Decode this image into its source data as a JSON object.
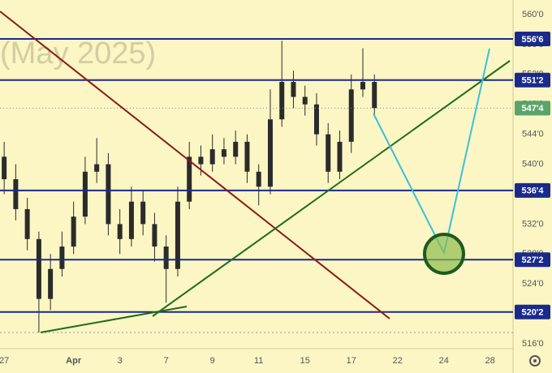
{
  "chart_data": {
    "type": "candlestick",
    "watermark": "(May 2025)",
    "color": "#2b2b2b",
    "x": [
      0,
      0.5,
      1,
      1.5,
      2,
      2.5,
      3,
      3.5,
      4,
      4.5,
      5,
      5.5,
      6,
      6.5,
      7,
      7.5,
      8,
      8.5,
      9,
      9.5,
      10,
      10.5,
      11,
      11.5,
      12,
      12.5,
      13,
      13.5,
      14,
      14.5,
      15,
      15.5,
      16
    ],
    "open": [
      541,
      538,
      534,
      530,
      522,
      526,
      529,
      533,
      539,
      540,
      532,
      530,
      535,
      532,
      529,
      526,
      535,
      541,
      540,
      542,
      541,
      543,
      539,
      537,
      546,
      551,
      549,
      548,
      544,
      539,
      543,
      550,
      551
    ],
    "high": [
      543,
      540,
      535.5,
      531,
      528,
      531,
      535,
      541,
      543.5,
      541.5,
      534,
      537,
      536.5,
      533.5,
      530.5,
      537,
      543,
      542.5,
      544,
      543.5,
      544.5,
      544,
      540,
      550,
      556.5,
      552.5,
      550.5,
      549.5,
      545.5,
      544.5,
      552,
      555.5,
      552
    ],
    "low": [
      536,
      532.5,
      528.5,
      517.5,
      520.5,
      525,
      528,
      532,
      537.5,
      530.5,
      528,
      529,
      530.5,
      527,
      521.5,
      525,
      534,
      538.5,
      539,
      540,
      540,
      537.5,
      534.5,
      536,
      545,
      547.5,
      546.5,
      542.5,
      537.5,
      538,
      541.5,
      549,
      546.5
    ],
    "close": [
      538,
      534,
      530,
      522,
      526,
      529,
      533,
      539,
      540,
      532,
      530,
      535,
      532,
      529,
      526,
      535,
      541,
      540,
      542,
      541,
      543,
      539,
      537,
      546,
      551,
      549,
      548,
      544,
      539,
      543,
      550,
      551,
      547.5
    ],
    "xlim": [
      -0.18,
      21.99
    ],
    "ylim": [
      515.35,
      561.95
    ],
    "xticks": [
      {
        "value": 0,
        "label": "27"
      },
      {
        "value": 3,
        "label": "Apr"
      },
      {
        "value": 5,
        "label": "3"
      },
      {
        "value": 7,
        "label": "7"
      },
      {
        "value": 9,
        "label": "9"
      },
      {
        "value": 11,
        "label": "11"
      },
      {
        "value": 13,
        "label": "15"
      },
      {
        "value": 15,
        "label": "17"
      },
      {
        "value": 17,
        "label": "22"
      },
      {
        "value": 19,
        "label": "24"
      },
      {
        "value": 21,
        "label": "28"
      }
    ],
    "yticks": [
      {
        "value": 516,
        "label": "516'0"
      },
      {
        "value": 520,
        "label": "520'0"
      },
      {
        "value": 524,
        "label": "524'0"
      },
      {
        "value": 528,
        "label": "528'0"
      },
      {
        "value": 532,
        "label": "532'0"
      },
      {
        "value": 536,
        "label": "536'0"
      },
      {
        "value": 540,
        "label": "540'0"
      },
      {
        "value": 544,
        "label": "544'0"
      },
      {
        "value": 548,
        "label": "548'0"
      },
      {
        "value": 552,
        "label": "552'0"
      },
      {
        "value": 556,
        "label": "556'0"
      },
      {
        "value": 560,
        "label": "560'0"
      }
    ],
    "levels": [
      {
        "value": 556.75,
        "label": "556'6"
      },
      {
        "value": 551.25,
        "label": "551'2"
      },
      {
        "value": 536.5,
        "label": "536'4"
      },
      {
        "value": 527.25,
        "label": "527'2"
      },
      {
        "value": 520.25,
        "label": "520'2"
      }
    ],
    "level_color": "#1a2a8c",
    "last_price": {
      "value": 547.5,
      "label": "547'4",
      "color": "#5aa469"
    }
  }
}
